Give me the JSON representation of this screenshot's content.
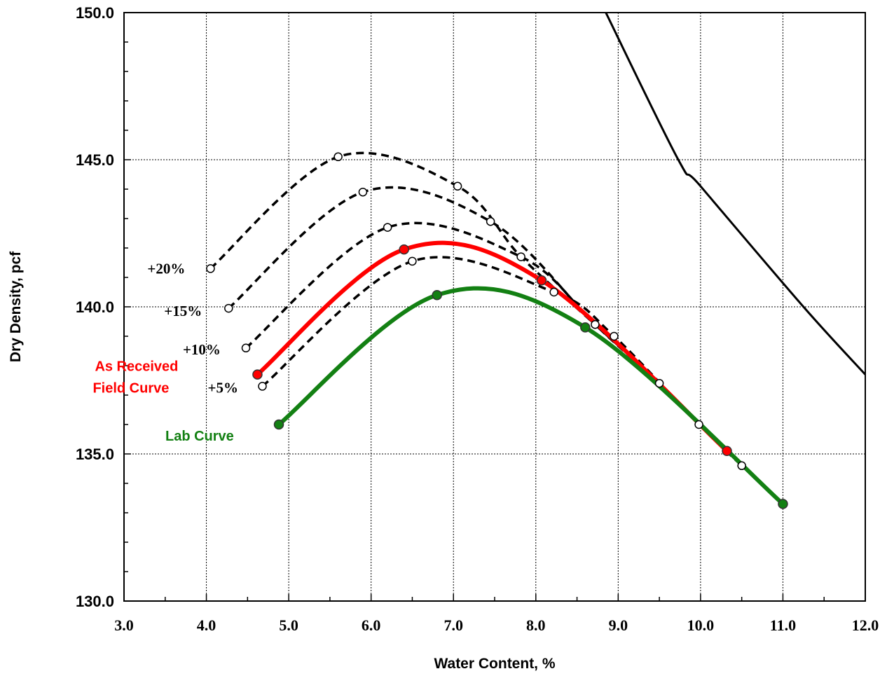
{
  "chart_data": {
    "type": "line",
    "title": "",
    "xlabel": "Water Content, %",
    "ylabel": "Dry Density, pcf",
    "xlim": [
      3.0,
      12.0
    ],
    "ylim": [
      130.0,
      150.0
    ],
    "x_ticks": [
      "3.0",
      "4.0",
      "5.0",
      "6.0",
      "7.0",
      "8.0",
      "9.0",
      "10.0",
      "11.0",
      "12.0"
    ],
    "y_ticks": [
      "130.0",
      "135.0",
      "140.0",
      "145.0",
      "150.0"
    ],
    "grid": true,
    "series": [
      {
        "name": "+20%",
        "style": "dashed",
        "color": "#000000",
        "marker": "open-circle",
        "points": [
          [
            4.05,
            141.3
          ],
          [
            5.6,
            145.1
          ],
          [
            7.05,
            144.1
          ],
          [
            7.82,
            141.7
          ],
          [
            8.72,
            139.4
          ],
          [
            9.5,
            137.4
          ],
          [
            10.5,
            134.6
          ]
        ],
        "markers_x": [
          4.05,
          5.6,
          7.05
        ]
      },
      {
        "name": "+15%",
        "style": "dashed",
        "color": "#000000",
        "marker": "open-circle",
        "points": [
          [
            4.27,
            139.95
          ],
          [
            5.9,
            143.9
          ],
          [
            7.45,
            142.9
          ],
          [
            8.72,
            139.4
          ],
          [
            9.5,
            137.4
          ],
          [
            10.5,
            134.6
          ]
        ],
        "markers_x": [
          4.27,
          5.9,
          7.45
        ]
      },
      {
        "name": "+10%",
        "style": "dashed",
        "color": "#000000",
        "marker": "open-circle",
        "points": [
          [
            4.48,
            138.6
          ],
          [
            6.2,
            142.7
          ],
          [
            7.82,
            141.7
          ],
          [
            8.72,
            139.4
          ],
          [
            9.5,
            137.4
          ],
          [
            10.5,
            134.6
          ]
        ],
        "markers_x": [
          4.48,
          6.2,
          7.82,
          8.72,
          9.5,
          10.5
        ]
      },
      {
        "name": "+5%",
        "style": "dashed",
        "color": "#000000",
        "marker": "open-circle",
        "points": [
          [
            4.68,
            137.3
          ],
          [
            6.5,
            141.55
          ],
          [
            8.22,
            140.5
          ],
          [
            8.95,
            139.0
          ],
          [
            9.98,
            136.0
          ],
          [
            10.5,
            134.6
          ]
        ],
        "markers_x": [
          4.68,
          6.5,
          8.22,
          8.95,
          9.98
        ]
      },
      {
        "name": "As Received Field Curve",
        "style": "solid",
        "color": "#ff0000",
        "marker": "filled-circle",
        "points": [
          [
            4.62,
            137.7
          ],
          [
            6.4,
            141.95
          ],
          [
            8.07,
            140.9
          ],
          [
            10.32,
            135.1
          ]
        ],
        "markers_x": [
          4.62,
          6.4,
          8.07,
          10.32
        ]
      },
      {
        "name": "Lab Curve",
        "style": "solid",
        "color": "#138013",
        "marker": "filled-circle",
        "points": [
          [
            4.88,
            136.0
          ],
          [
            6.8,
            140.4
          ],
          [
            8.6,
            139.3
          ],
          [
            11.0,
            133.3
          ]
        ],
        "markers_x": [
          4.88,
          6.8,
          8.6,
          11.0
        ]
      },
      {
        "style": "solid",
        "color": "#000000",
        "marker": "none",
        "points": [
          [
            8.85,
            150.0
          ],
          [
            9.73,
            145.0
          ],
          [
            10.0,
            144.1
          ],
          [
            11.25,
            140.0
          ],
          [
            12.0,
            137.7
          ]
        ],
        "markers_x": []
      }
    ],
    "annotations": [
      {
        "text": "+20%",
        "anchor_x": 4.05,
        "anchor_y": 141.3,
        "color": "#000000"
      },
      {
        "text": "+15%",
        "anchor_x": 4.27,
        "anchor_y": 139.95,
        "color": "#000000"
      },
      {
        "text": "+10%",
        "anchor_x": 4.48,
        "anchor_y": 138.6,
        "color": "#000000"
      },
      {
        "text": "+5%",
        "anchor_x": 4.68,
        "anchor_y": 137.3,
        "color": "#000000"
      },
      {
        "text": "As Received",
        "anchor_x": 4.62,
        "anchor_y": 137.7,
        "color": "#ff0000"
      },
      {
        "text": "Field Curve",
        "anchor_x": 4.62,
        "anchor_y": 137.7,
        "color": "#ff0000"
      },
      {
        "text": "Lab Curve",
        "anchor_x": 4.88,
        "anchor_y": 136.0,
        "color": "#138013"
      }
    ]
  }
}
